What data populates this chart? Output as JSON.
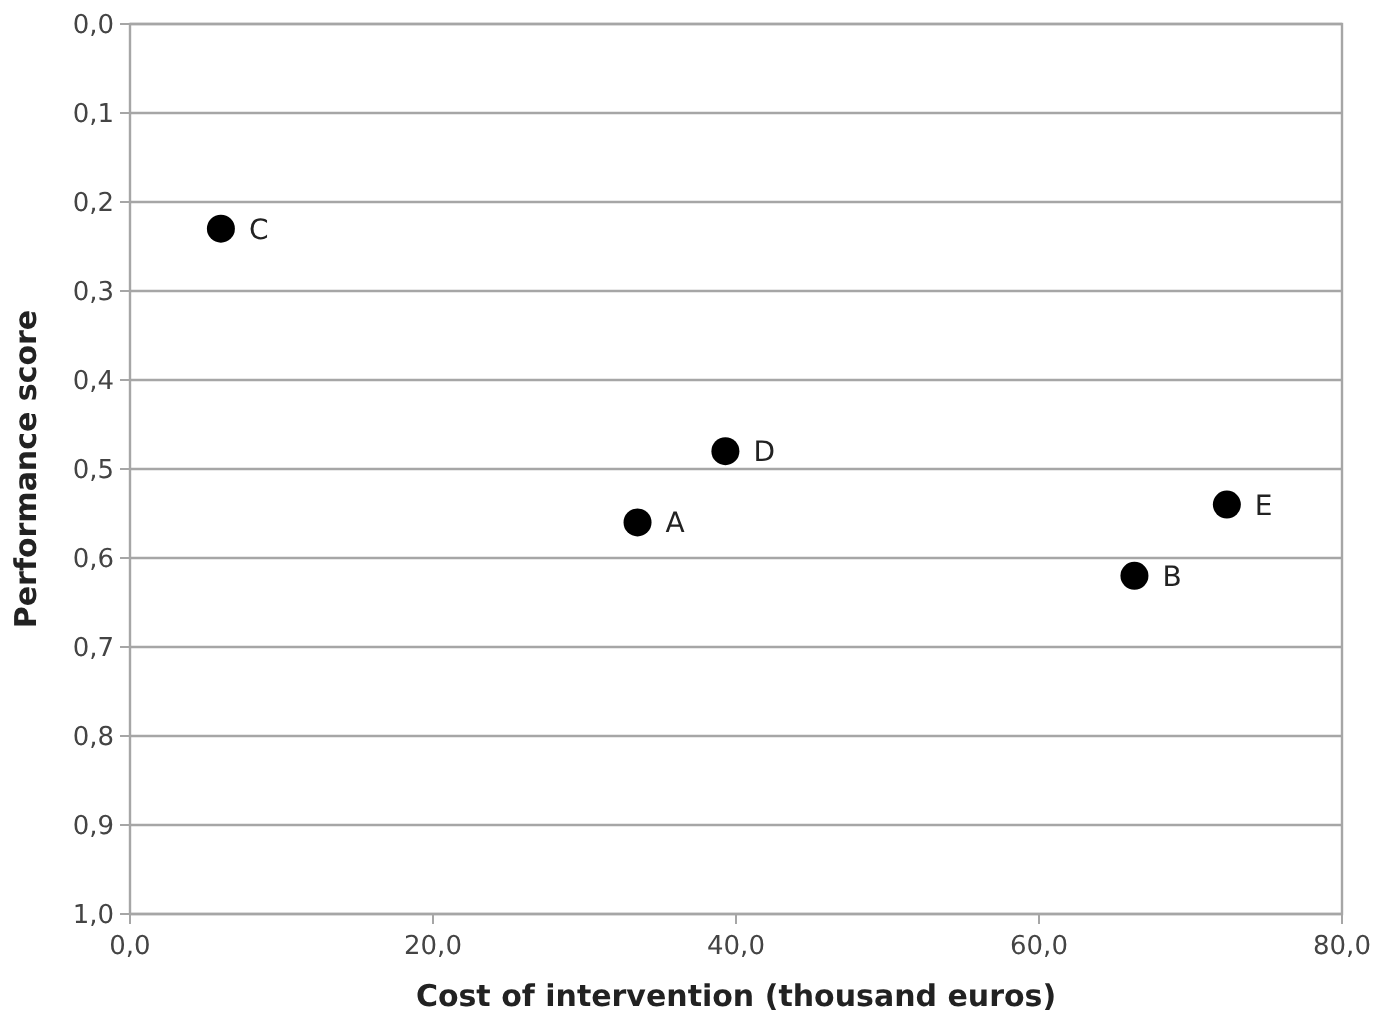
{
  "chart_data": {
    "type": "scatter",
    "xlabel": "Cost of intervention (thousand euros)",
    "ylabel": "Performance score",
    "x": [
      33.5,
      66.3,
      6.0,
      39.3,
      72.4
    ],
    "series": [
      {
        "color": "#000000",
        "values": [
          0.56,
          0.62,
          0.23,
          0.48,
          0.54
        ]
      }
    ],
    "annotations": [
      {
        "text": "A",
        "x": 33.5,
        "y": 0.56
      },
      {
        "text": "B",
        "x": 66.3,
        "y": 0.62
      },
      {
        "text": "C",
        "x": 6.0,
        "y": 0.23
      },
      {
        "text": "D",
        "x": 39.3,
        "y": 0.48
      },
      {
        "text": "E",
        "x": 72.4,
        "y": 0.54
      }
    ],
    "xlim": [
      0,
      80
    ],
    "xticks": [
      {
        "value": 0,
        "label": "0,0"
      },
      {
        "value": 20,
        "label": "20,0"
      },
      {
        "value": 40,
        "label": "40,0"
      },
      {
        "value": 60,
        "label": "60,0"
      },
      {
        "value": 80,
        "label": "80,0"
      }
    ],
    "ylim": [
      1,
      0
    ],
    "yticks": [
      {
        "value": 0,
        "label": "0,0"
      },
      {
        "value": 0.1,
        "label": "0,1"
      },
      {
        "value": 0.2,
        "label": "0,2"
      },
      {
        "value": 0.3,
        "label": "0,3"
      },
      {
        "value": 0.4,
        "label": "0,4"
      },
      {
        "value": 0.5,
        "label": "0,5"
      },
      {
        "value": 0.6,
        "label": "0,6"
      },
      {
        "value": 0.7,
        "label": "0,7"
      },
      {
        "value": 0.8,
        "label": "0,8"
      },
      {
        "value": 0.9,
        "label": "0,9"
      },
      {
        "value": 1,
        "label": "1,0"
      }
    ],
    "grid": "y",
    "marker": "circle"
  }
}
